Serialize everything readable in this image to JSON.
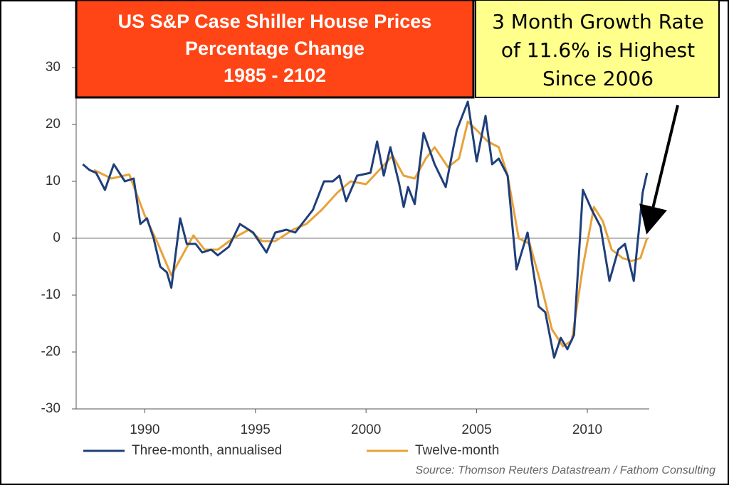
{
  "chart_data": {
    "type": "line",
    "title": [
      "US S&P Case Shiller House Prices",
      "Percentage Change",
      "1985  - 2102"
    ],
    "annotation": [
      "3 Month Growth Rate",
      "of 11.6% is Highest",
      "Since 2006"
    ],
    "source": "Source: Thomson Reuters Datastream / Fathom Consulting",
    "xlim": [
      1986.9,
      2012.8
    ],
    "xticks": [
      1990,
      1995,
      2000,
      2005,
      2010
    ],
    "ylim": [
      -30,
      30
    ],
    "yticks": [
      -30,
      -20,
      -10,
      0,
      10,
      20,
      30
    ],
    "series": [
      {
        "name": "Three-month, annualised",
        "color": "#1f3f7a",
        "x": [
          1987.2,
          1987.5,
          1987.8,
          1988.2,
          1988.6,
          1989.1,
          1989.5,
          1989.8,
          1990.1,
          1990.4,
          1990.7,
          1991.0,
          1991.2,
          1991.6,
          1991.9,
          1992.3,
          1992.6,
          1993.0,
          1993.3,
          1993.8,
          1994.3,
          1994.9,
          1995.5,
          1995.9,
          1996.4,
          1996.8,
          1997.2,
          1997.6,
          1998.1,
          1998.5,
          1998.8,
          1999.1,
          1999.6,
          2000.2,
          2000.5,
          2000.8,
          2001.1,
          2001.5,
          2001.7,
          2001.9,
          2002.2,
          2002.6,
          2003.1,
          2003.6,
          2004.1,
          2004.6,
          2005.0,
          2005.4,
          2005.7,
          2006.0,
          2006.4,
          2006.8,
          2007.3,
          2007.8,
          2008.1,
          2008.5,
          2008.8,
          2009.1,
          2009.4,
          2009.8,
          2010.2,
          2010.6,
          2011.0,
          2011.4,
          2011.7,
          2012.1,
          2012.5,
          2012.7
        ],
        "values": [
          13,
          12,
          11.5,
          8.5,
          13,
          10,
          10.5,
          2.5,
          3.5,
          0,
          -5,
          -6,
          -8.7,
          3.5,
          -1,
          -1,
          -2.5,
          -2,
          -3,
          -1.5,
          2.5,
          1,
          -2.5,
          1,
          1.5,
          1,
          3,
          5,
          10,
          10,
          11,
          6.5,
          11,
          11.5,
          17,
          11,
          16,
          9.5,
          5.5,
          9,
          6,
          18.5,
          13,
          9,
          19,
          24,
          13.5,
          21.5,
          13,
          14,
          11,
          -5.5,
          1,
          -12,
          -13,
          -21,
          -17.5,
          -19.5,
          -17,
          8.5,
          5,
          2,
          -7.5,
          -2,
          -1,
          -7.5,
          8,
          11.5
        ]
      },
      {
        "name": "Twelve-month",
        "color": "#e8a23a",
        "x": [
          1987.7,
          1988.5,
          1989.3,
          1990.0,
          1990.6,
          1991.2,
          1991.7,
          1992.2,
          1992.7,
          1993.3,
          1994.0,
          1994.7,
          1995.3,
          1995.9,
          1996.7,
          1997.3,
          1998.0,
          1998.7,
          1999.3,
          2000.0,
          2000.6,
          2001.2,
          2001.7,
          2002.2,
          2002.7,
          2003.1,
          2003.7,
          2004.2,
          2004.6,
          2005.0,
          2005.5,
          2006.0,
          2006.4,
          2006.9,
          2007.4,
          2007.9,
          2008.4,
          2008.9,
          2009.3,
          2009.8,
          2010.3,
          2010.7,
          2011.1,
          2011.6,
          2012.0,
          2012.4,
          2012.7
        ],
        "values": [
          12,
          10.5,
          11.2,
          4,
          -1,
          -6.5,
          -3,
          0.5,
          -2,
          -2,
          0,
          1.5,
          -0.5,
          -0.5,
          1.5,
          2.5,
          5,
          8,
          10,
          9.5,
          12,
          14.5,
          11,
          10.5,
          14,
          16,
          12.5,
          14,
          20.5,
          19,
          17,
          16,
          11,
          0,
          -1,
          -8,
          -16,
          -19,
          -18,
          -5,
          5.5,
          3,
          -2,
          -3.5,
          -4,
          -3.5,
          0
        ]
      }
    ]
  }
}
